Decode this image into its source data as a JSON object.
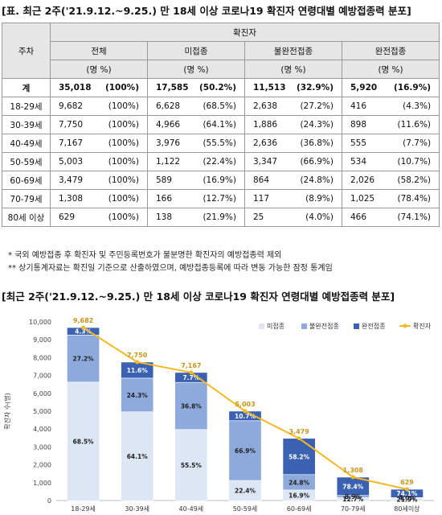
{
  "table_title": "[표. 최근 2주('21.9.12.~9.25.) 만 18세 이상 코로나19 확진자 연령대별 예방접종력 분포]",
  "table": {
    "row_header": "주차",
    "group_header": "확진자",
    "columns": [
      "전체",
      "미접종",
      "불완전접종",
      "완전접종"
    ],
    "unit": "(명 %)",
    "total_row": {
      "label": "계",
      "cells": [
        [
          "35,018",
          "(100%)"
        ],
        [
          "17,585",
          "(50.2%)"
        ],
        [
          "11,513",
          "(32.9%)"
        ],
        [
          "5,920",
          "(16.9%)"
        ]
      ]
    },
    "rows": [
      {
        "label": "18-29세",
        "cells": [
          [
            "9,682",
            "(100%)"
          ],
          [
            "6,628",
            "(68.5%)"
          ],
          [
            "2,638",
            "(27.2%)"
          ],
          [
            "416",
            "(4.3%)"
          ]
        ]
      },
      {
        "label": "30-39세",
        "cells": [
          [
            "7,750",
            "(100%)"
          ],
          [
            "4,966",
            "(64.1%)"
          ],
          [
            "1,886",
            "(24.3%)"
          ],
          [
            "898",
            "(11.6%)"
          ]
        ]
      },
      {
        "label": "40-49세",
        "cells": [
          [
            "7,167",
            "(100%)"
          ],
          [
            "3,976",
            "(55.5%)"
          ],
          [
            "2,636",
            "(36.8%)"
          ],
          [
            "555",
            "(7.7%)"
          ]
        ]
      },
      {
        "label": "50-59세",
        "cells": [
          [
            "5,003",
            "(100%)"
          ],
          [
            "1,122",
            "(22.4%)"
          ],
          [
            "3,347",
            "(66.9%)"
          ],
          [
            "534",
            "(10.7%)"
          ]
        ]
      },
      {
        "label": "60-69세",
        "cells": [
          [
            "3,479",
            "(100%)"
          ],
          [
            "589",
            "(16.9%)"
          ],
          [
            "864",
            "(24.8%)"
          ],
          [
            "2,026",
            "(58.2%)"
          ]
        ]
      },
      {
        "label": "70-79세",
        "cells": [
          [
            "1,308",
            "(100%)"
          ],
          [
            "166",
            "(12.7%)"
          ],
          [
            "117",
            "(8.9%)"
          ],
          [
            "1,025",
            "(78.4%)"
          ]
        ]
      },
      {
        "label": "80세 이상",
        "cells": [
          [
            "629",
            "(100%)"
          ],
          [
            "138",
            "(21.9%)"
          ],
          [
            "25",
            "(4.0%)"
          ],
          [
            "466",
            "(74.1%)"
          ]
        ]
      }
    ]
  },
  "notes": [
    "* 국외 예방접종 후 확진자 및 주민등록번호가 불분명한 확진자의 예방접종력 제외",
    "** 상기통계자료는 확진일 기준으로 산출하였으며, 예방접종등록에 따라 변동 가능한 잠정 통계임"
  ],
  "chart_title": "[최근 2주('21.9.12.~9.25.) 만 18세 이상 코로나19 확진자 연령대별 예방접종력 분포]",
  "colors": {
    "unvax": "#dde6f4",
    "partial": "#8eaadc",
    "full": "#3b62b2",
    "line": "#f2b920",
    "label_amber": "#c9951a",
    "header_bg": "#e6e6e6"
  },
  "chart_data": {
    "type": "bar",
    "stacked": true,
    "categories": [
      "18-29세",
      "30-39세",
      "40-49세",
      "50-59세",
      "60-69세",
      "70-79세",
      "80세이상"
    ],
    "series": [
      {
        "name": "미접종",
        "values": [
          6628,
          4966,
          3976,
          1122,
          589,
          166,
          138
        ],
        "pct_labels": [
          "68.5%",
          "64.1%",
          "55.5%",
          "22.4%",
          "16.9%",
          "12.7%",
          "21.9%"
        ]
      },
      {
        "name": "불완전접종",
        "values": [
          2638,
          1886,
          2636,
          3347,
          864,
          117,
          25
        ],
        "pct_labels": [
          "27.2%",
          "24.3%",
          "36.8%",
          "66.9%",
          "24.8%",
          "8.9%",
          "4.0%"
        ]
      },
      {
        "name": "완전접종",
        "values": [
          416,
          898,
          555,
          534,
          2026,
          1025,
          466
        ],
        "pct_labels": [
          "4.3%",
          "11.6%",
          "7.7%",
          "10.7%",
          "58.2%",
          "78.4%",
          "74.1%"
        ]
      }
    ],
    "line": {
      "name": "확진자",
      "values": [
        9682,
        7750,
        7167,
        5003,
        3479,
        1308,
        629
      ],
      "labels": [
        "9,682",
        "7,750",
        "7,167",
        "5,003",
        "3,479",
        "1,308",
        "629"
      ]
    },
    "ylabel": "확진자 수(명)",
    "ylim": [
      0,
      10000
    ],
    "yticks": [
      "0",
      "1,000",
      "2,000",
      "3,000",
      "4,000",
      "5,000",
      "6,000",
      "7,000",
      "8,000",
      "9,000",
      "10,000"
    ],
    "legend": "top-right",
    "grid": false
  }
}
